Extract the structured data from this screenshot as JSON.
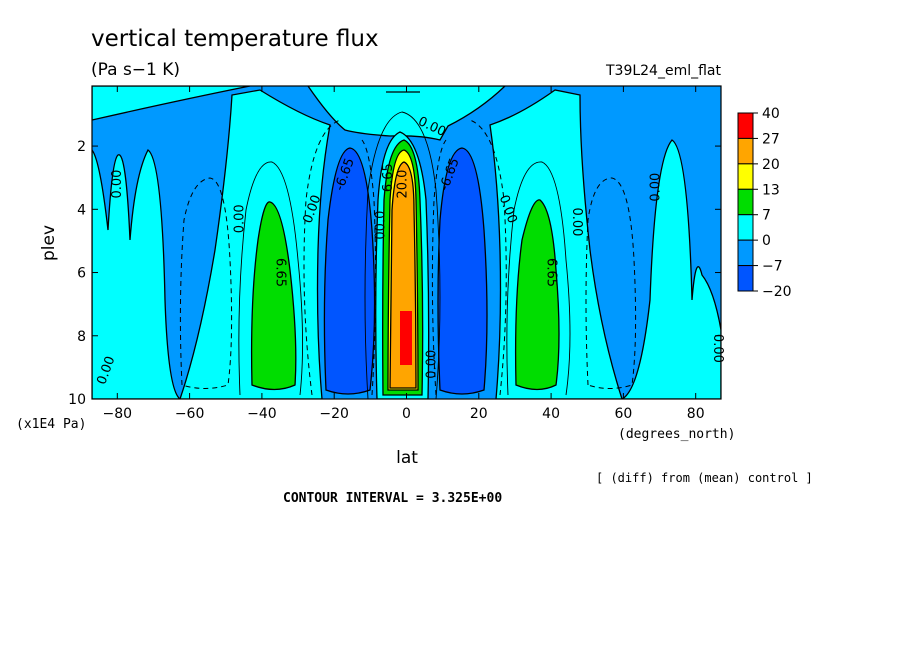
{
  "chart_data": {
    "type": "heatmap",
    "title": "vertical temperature flux",
    "units": "(Pa s−1 K)",
    "run_label": "T39L24_eml_flat",
    "xlabel": "lat",
    "x_units": "(degrees_north)",
    "ylabel": "plev",
    "y_units": "(x1E4 Pa)",
    "xlim": [
      -87,
      87
    ],
    "ylim": [
      10,
      0.1
    ],
    "y_reversed": true,
    "x_ticks": [
      "−80",
      "−60",
      "−40",
      "−20",
      "0",
      "20",
      "40",
      "60",
      "80"
    ],
    "y_ticks": [
      "2",
      "4",
      "6",
      "8",
      "10"
    ],
    "contour_interval_text": "CONTOUR INTERVAL = 3.325E+00",
    "comparison_note": "[ (diff) from (mean) control ]",
    "colorbar": {
      "labels": [
        "40",
        "27",
        "20",
        "13",
        "7",
        "0",
        "−7",
        "−20"
      ],
      "colors": [
        "#ff0000",
        "#ffa500",
        "#ffff00",
        "#00dd00",
        "#00ffff",
        "#0099ff",
        "#0055ff"
      ]
    },
    "contour_labels": [
      {
        "text": "0.00",
        "lat": -80,
        "plev": 3.2,
        "rot": -90
      },
      {
        "text": "0.00",
        "lat": -46,
        "plev": 4.3,
        "rot": -90
      },
      {
        "text": "6.65",
        "lat": -35,
        "plev": 6.0,
        "rot": 90
      },
      {
        "text": "0.00",
        "lat": -26,
        "plev": 4.0,
        "rot": -70
      },
      {
        "text": "-6.65",
        "lat": -17,
        "plev": 2.9,
        "rot": -70
      },
      {
        "text": "00.0",
        "lat": -7,
        "plev": 4.5,
        "rot": -90
      },
      {
        "text": "6.65",
        "lat": -5,
        "plev": 3.0,
        "rot": -90
      },
      {
        "text": "20.0",
        "lat": -1,
        "plev": 3.2,
        "rot": -90
      },
      {
        "text": "0.00",
        "lat": 7,
        "plev": 1.4,
        "rot": 25
      },
      {
        "text": "0.00",
        "lat": 7,
        "plev": 8.9,
        "rot": -90
      },
      {
        "text": "-6.65",
        "lat": 12,
        "plev": 2.9,
        "rot": -70
      },
      {
        "text": "0.00",
        "lat": 28,
        "plev": 4.0,
        "rot": 70
      },
      {
        "text": "6.65",
        "lat": 40,
        "plev": 6.0,
        "rot": 90
      },
      {
        "text": "0.00",
        "lat": 47,
        "plev": 4.4,
        "rot": 90
      },
      {
        "text": "0.00",
        "lat": 69,
        "plev": 3.3,
        "rot": -90
      },
      {
        "text": "0.00",
        "lat": -83,
        "plev": 9.1,
        "rot": -70
      },
      {
        "text": "0.00",
        "lat": 86,
        "plev": 8.4,
        "rot": 90
      }
    ]
  }
}
